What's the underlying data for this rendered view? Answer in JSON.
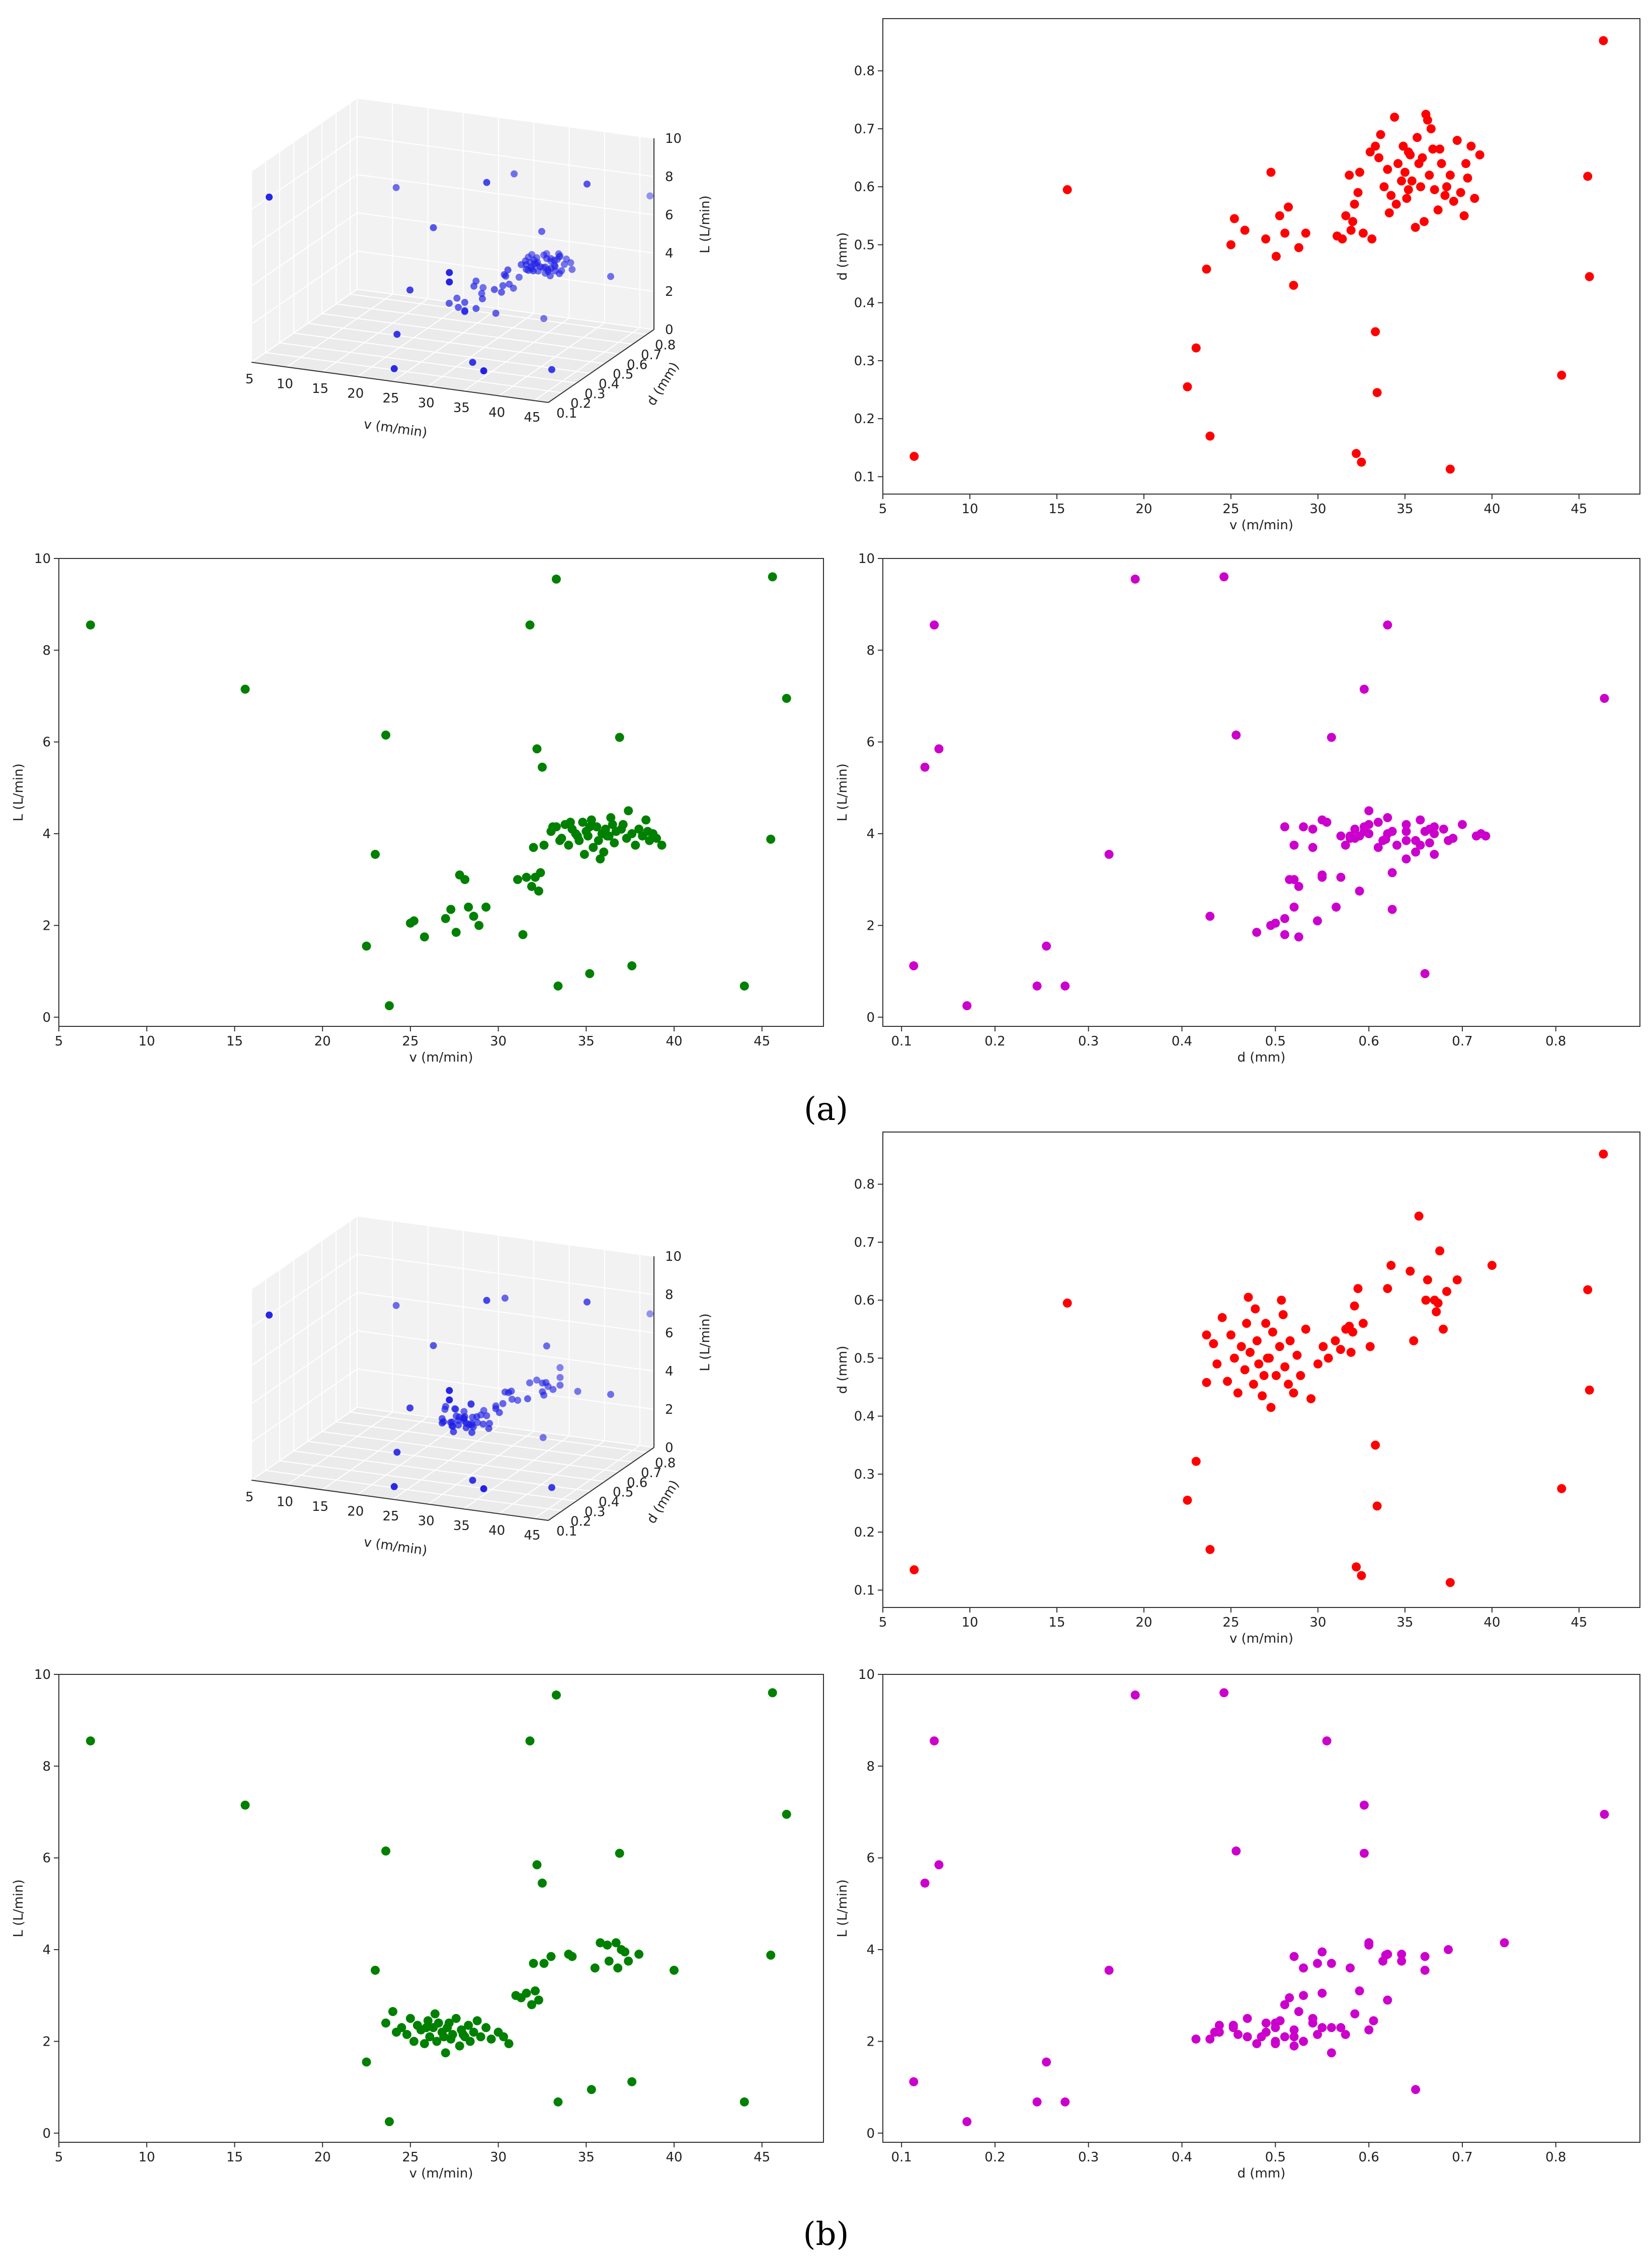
{
  "figure": {
    "parts": [
      {
        "id": "a",
        "label": "(a)"
      },
      {
        "id": "b",
        "label": "(b)"
      }
    ]
  },
  "colors": {
    "v_d_L_3d": "#1f1fe6",
    "v_vs_d": "#ff0000",
    "v_vs_L": "#008000",
    "d_vs_L": "#cc00cc",
    "frame": "#333333"
  },
  "chart_data": [
    {
      "id": "a-3d",
      "part": "a",
      "type": "scatter",
      "projection": "3d",
      "xlabel": "v (m/min)",
      "ylabel": "d (mm)",
      "zlabel": "L (L/min)",
      "xticks": [
        "5",
        "10",
        "15",
        "20",
        "25",
        "30",
        "35",
        "40",
        "45"
      ],
      "yticks": [
        "0.1",
        "0.2",
        "0.3",
        "0.4",
        "0.5",
        "0.6",
        "0.7",
        "0.8"
      ],
      "zticks": [
        "0",
        "2",
        "4",
        "6",
        "8",
        "10"
      ],
      "xlim": [
        5,
        47
      ],
      "ylim": [
        0.1,
        0.85
      ],
      "zlim": [
        0,
        10
      ],
      "points": "part_a"
    },
    {
      "id": "a-vd",
      "part": "a",
      "type": "scatter",
      "xlabel": "v (m/min)",
      "ylabel": "d (mm)",
      "xlim": [
        5,
        48.5
      ],
      "ylim": [
        0.07,
        0.89
      ],
      "xticks": [
        5,
        10,
        15,
        20,
        25,
        30,
        35,
        40,
        45
      ],
      "yticks": [
        0.1,
        0.2,
        0.3,
        0.4,
        0.5,
        0.6,
        0.7,
        0.8
      ],
      "xfield": "v",
      "yfield": "d",
      "points": "part_a"
    },
    {
      "id": "a-vL",
      "part": "a",
      "type": "scatter",
      "xlabel": "v (m/min)",
      "ylabel": "L (L/min)",
      "xlim": [
        5,
        48.5
      ],
      "ylim": [
        -0.2,
        10
      ],
      "xticks": [
        5,
        10,
        15,
        20,
        25,
        30,
        35,
        40,
        45
      ],
      "yticks": [
        0,
        2,
        4,
        6,
        8,
        10
      ],
      "xfield": "v",
      "yfield": "L",
      "points": "part_a"
    },
    {
      "id": "a-dL",
      "part": "a",
      "type": "scatter",
      "xlabel": "d (mm)",
      "ylabel": "L (L/min)",
      "xlim": [
        0.08,
        0.89
      ],
      "ylim": [
        -0.2,
        10
      ],
      "xticks": [
        0.1,
        0.2,
        0.3,
        0.4,
        0.5,
        0.6,
        0.7,
        0.8
      ],
      "yticks": [
        0,
        2,
        4,
        6,
        8,
        10
      ],
      "xfield": "d",
      "yfield": "L",
      "points": "part_a"
    },
    {
      "id": "b-3d",
      "part": "b",
      "type": "scatter",
      "projection": "3d",
      "xlabel": "v (m/min)",
      "ylabel": "d (mm)",
      "zlabel": "L (L/min)",
      "xticks": [
        "5",
        "10",
        "15",
        "20",
        "25",
        "30",
        "35",
        "40",
        "45"
      ],
      "yticks": [
        "0.1",
        "0.2",
        "0.3",
        "0.4",
        "0.5",
        "0.6",
        "0.7",
        "0.8"
      ],
      "zticks": [
        "0",
        "2",
        "4",
        "6",
        "8",
        "10"
      ],
      "xlim": [
        5,
        47
      ],
      "ylim": [
        0.1,
        0.85
      ],
      "zlim": [
        0,
        10
      ],
      "points": "part_b"
    },
    {
      "id": "b-vd",
      "part": "b",
      "type": "scatter",
      "xlabel": "v (m/min)",
      "ylabel": "d (mm)",
      "xlim": [
        5,
        48.5
      ],
      "ylim": [
        0.07,
        0.89
      ],
      "xticks": [
        5,
        10,
        15,
        20,
        25,
        30,
        35,
        40,
        45
      ],
      "yticks": [
        0.1,
        0.2,
        0.3,
        0.4,
        0.5,
        0.6,
        0.7,
        0.8
      ],
      "xfield": "v",
      "yfield": "d",
      "points": "part_b"
    },
    {
      "id": "b-vL",
      "part": "b",
      "type": "scatter",
      "xlabel": "v (m/min)",
      "ylabel": "L (L/min)",
      "xlim": [
        5,
        48.5
      ],
      "ylim": [
        -0.2,
        10
      ],
      "xticks": [
        5,
        10,
        15,
        20,
        25,
        30,
        35,
        40,
        45
      ],
      "yticks": [
        0,
        2,
        4,
        6,
        8,
        10
      ],
      "xfield": "v",
      "yfield": "L",
      "points": "part_b"
    },
    {
      "id": "b-dL",
      "part": "b",
      "type": "scatter",
      "xlabel": "d (mm)",
      "ylabel": "L (L/min)",
      "xlim": [
        0.08,
        0.89
      ],
      "ylim": [
        -0.2,
        10
      ],
      "xticks": [
        0.1,
        0.2,
        0.3,
        0.4,
        0.5,
        0.6,
        0.7,
        0.8
      ],
      "yticks": [
        0,
        2,
        4,
        6,
        8,
        10
      ],
      "xfield": "d",
      "yfield": "L",
      "points": "part_b"
    }
  ],
  "datasets": {
    "outliers": [
      {
        "v": 6.8,
        "d": 0.135,
        "L": 8.55
      },
      {
        "v": 15.6,
        "d": 0.595,
        "L": 7.15
      },
      {
        "v": 22.5,
        "d": 0.255,
        "L": 1.55
      },
      {
        "v": 23.0,
        "d": 0.322,
        "L": 3.55
      },
      {
        "v": 23.6,
        "d": 0.458,
        "L": 6.15
      },
      {
        "v": 23.8,
        "d": 0.17,
        "L": 0.25
      },
      {
        "v": 32.2,
        "d": 0.14,
        "L": 5.85
      },
      {
        "v": 32.5,
        "d": 0.125,
        "L": 5.45
      },
      {
        "v": 33.3,
        "d": 0.35,
        "L": 9.55
      },
      {
        "v": 33.4,
        "d": 0.245,
        "L": 0.68
      },
      {
        "v": 37.6,
        "d": 0.113,
        "L": 1.12
      },
      {
        "v": 44.0,
        "d": 0.275,
        "L": 0.68
      },
      {
        "v": 45.6,
        "d": 0.445,
        "L": 9.6
      },
      {
        "v": 45.5,
        "d": 0.618,
        "L": 3.88
      },
      {
        "v": 46.4,
        "d": 0.852,
        "L": 6.95
      }
    ],
    "part_a_cluster": [
      {
        "v": 25.2,
        "d": 0.545,
        "L": 2.1
      },
      {
        "v": 25.0,
        "d": 0.5,
        "L": 2.05
      },
      {
        "v": 25.8,
        "d": 0.525,
        "L": 1.75
      },
      {
        "v": 27.0,
        "d": 0.51,
        "L": 2.15
      },
      {
        "v": 27.3,
        "d": 0.625,
        "L": 2.35
      },
      {
        "v": 27.6,
        "d": 0.48,
        "L": 1.85
      },
      {
        "v": 27.8,
        "d": 0.55,
        "L": 3.1
      },
      {
        "v": 28.1,
        "d": 0.52,
        "L": 3.0
      },
      {
        "v": 28.3,
        "d": 0.565,
        "L": 2.4
      },
      {
        "v": 28.6,
        "d": 0.43,
        "L": 2.2
      },
      {
        "v": 28.9,
        "d": 0.495,
        "L": 2.0
      },
      {
        "v": 29.3,
        "d": 0.52,
        "L": 2.4
      },
      {
        "v": 31.1,
        "d": 0.515,
        "L": 3.0
      },
      {
        "v": 31.4,
        "d": 0.51,
        "L": 1.8
      },
      {
        "v": 31.6,
        "d": 0.55,
        "L": 3.05
      },
      {
        "v": 31.9,
        "d": 0.525,
        "L": 2.85
      },
      {
        "v": 32.1,
        "d": 0.57,
        "L": 3.05
      },
      {
        "v": 32.3,
        "d": 0.59,
        "L": 2.75
      },
      {
        "v": 32.4,
        "d": 0.625,
        "L": 3.15
      },
      {
        "v": 32.0,
        "d": 0.54,
        "L": 3.7
      },
      {
        "v": 32.6,
        "d": 0.52,
        "L": 3.75
      },
      {
        "v": 33.0,
        "d": 0.66,
        "L": 4.05
      },
      {
        "v": 33.3,
        "d": 0.67,
        "L": 4.15
      },
      {
        "v": 33.6,
        "d": 0.69,
        "L": 3.9
      },
      {
        "v": 33.8,
        "d": 0.6,
        "L": 4.2
      },
      {
        "v": 34.0,
        "d": 0.63,
        "L": 3.75
      },
      {
        "v": 34.2,
        "d": 0.585,
        "L": 4.1
      },
      {
        "v": 34.4,
        "d": 0.72,
        "L": 4.0
      },
      {
        "v": 34.6,
        "d": 0.64,
        "L": 3.85
      },
      {
        "v": 34.8,
        "d": 0.61,
        "L": 4.25
      },
      {
        "v": 35.0,
        "d": 0.625,
        "L": 4.05
      },
      {
        "v": 35.1,
        "d": 0.58,
        "L": 3.95
      },
      {
        "v": 35.3,
        "d": 0.655,
        "L": 4.3
      },
      {
        "v": 35.4,
        "d": 0.61,
        "L": 3.7
      },
      {
        "v": 35.6,
        "d": 0.53,
        "L": 4.15
      },
      {
        "v": 35.7,
        "d": 0.685,
        "L": 3.85
      },
      {
        "v": 35.9,
        "d": 0.6,
        "L": 4.0
      },
      {
        "v": 36.0,
        "d": 0.65,
        "L": 3.6
      },
      {
        "v": 36.1,
        "d": 0.54,
        "L": 4.1
      },
      {
        "v": 36.3,
        "d": 0.715,
        "L": 3.95
      },
      {
        "v": 36.4,
        "d": 0.62,
        "L": 4.35
      },
      {
        "v": 36.6,
        "d": 0.665,
        "L": 3.8
      },
      {
        "v": 36.7,
        "d": 0.595,
        "L": 4.05
      },
      {
        "v": 36.9,
        "d": 0.56,
        "L": 6.1
      },
      {
        "v": 37.1,
        "d": 0.64,
        "L": 4.2
      },
      {
        "v": 37.3,
        "d": 0.585,
        "L": 3.9
      },
      {
        "v": 37.4,
        "d": 0.6,
        "L": 4.5
      },
      {
        "v": 37.6,
        "d": 0.62,
        "L": 4.0
      },
      {
        "v": 37.8,
        "d": 0.575,
        "L": 3.75
      },
      {
        "v": 38.0,
        "d": 0.68,
        "L": 4.1
      },
      {
        "v": 38.2,
        "d": 0.59,
        "L": 3.95
      },
      {
        "v": 38.4,
        "d": 0.55,
        "L": 4.3
      },
      {
        "v": 38.6,
        "d": 0.615,
        "L": 3.85
      },
      {
        "v": 38.8,
        "d": 0.67,
        "L": 4.0
      },
      {
        "v": 39.0,
        "d": 0.58,
        "L": 3.9
      },
      {
        "v": 39.3,
        "d": 0.655,
        "L": 3.75
      },
      {
        "v": 33.1,
        "d": 0.51,
        "L": 4.15
      },
      {
        "v": 34.9,
        "d": 0.67,
        "L": 3.55
      },
      {
        "v": 35.8,
        "d": 0.64,
        "L": 3.45
      },
      {
        "v": 36.5,
        "d": 0.7,
        "L": 4.2
      },
      {
        "v": 34.1,
        "d": 0.555,
        "L": 4.25
      },
      {
        "v": 37.0,
        "d": 0.665,
        "L": 4.1
      },
      {
        "v": 35.2,
        "d": 0.595,
        "L": 4.15
      },
      {
        "v": 31.8,
        "d": 0.62,
        "L": 8.55
      },
      {
        "v": 35.2,
        "d": 0.66,
        "L": 0.95
      },
      {
        "v": 36.2,
        "d": 0.725,
        "L": 3.95
      },
      {
        "v": 38.5,
        "d": 0.64,
        "L": 4.05
      },
      {
        "v": 34.5,
        "d": 0.57,
        "L": 3.95
      },
      {
        "v": 33.5,
        "d": 0.65,
        "L": 3.85
      }
    ],
    "part_b_cluster": [
      {
        "v": 23.6,
        "d": 0.54,
        "L": 2.4
      },
      {
        "v": 24.0,
        "d": 0.525,
        "L": 2.65
      },
      {
        "v": 24.2,
        "d": 0.49,
        "L": 2.2
      },
      {
        "v": 24.5,
        "d": 0.57,
        "L": 2.3
      },
      {
        "v": 24.8,
        "d": 0.46,
        "L": 2.15
      },
      {
        "v": 25.0,
        "d": 0.54,
        "L": 2.5
      },
      {
        "v": 25.2,
        "d": 0.5,
        "L": 2.0
      },
      {
        "v": 25.4,
        "d": 0.44,
        "L": 2.35
      },
      {
        "v": 25.6,
        "d": 0.52,
        "L": 2.25
      },
      {
        "v": 25.8,
        "d": 0.48,
        "L": 1.95
      },
      {
        "v": 26.0,
        "d": 0.605,
        "L": 2.45
      },
      {
        "v": 26.1,
        "d": 0.51,
        "L": 2.1
      },
      {
        "v": 26.3,
        "d": 0.455,
        "L": 2.3
      },
      {
        "v": 26.5,
        "d": 0.53,
        "L": 2.0
      },
      {
        "v": 26.6,
        "d": 0.49,
        "L": 2.4
      },
      {
        "v": 26.8,
        "d": 0.435,
        "L": 2.2
      },
      {
        "v": 27.0,
        "d": 0.56,
        "L": 1.75
      },
      {
        "v": 27.1,
        "d": 0.5,
        "L": 2.3
      },
      {
        "v": 27.3,
        "d": 0.415,
        "L": 2.05
      },
      {
        "v": 27.4,
        "d": 0.545,
        "L": 2.15
      },
      {
        "v": 27.6,
        "d": 0.47,
        "L": 2.5
      },
      {
        "v": 27.8,
        "d": 0.52,
        "L": 1.9
      },
      {
        "v": 27.9,
        "d": 0.6,
        "L": 2.25
      },
      {
        "v": 28.1,
        "d": 0.485,
        "L": 2.1
      },
      {
        "v": 28.3,
        "d": 0.455,
        "L": 2.35
      },
      {
        "v": 28.4,
        "d": 0.53,
        "L": 2.0
      },
      {
        "v": 28.6,
        "d": 0.44,
        "L": 2.2
      },
      {
        "v": 28.8,
        "d": 0.505,
        "L": 2.45
      },
      {
        "v": 29.0,
        "d": 0.47,
        "L": 2.1
      },
      {
        "v": 29.3,
        "d": 0.55,
        "L": 2.3
      },
      {
        "v": 29.6,
        "d": 0.43,
        "L": 2.05
      },
      {
        "v": 30.0,
        "d": 0.49,
        "L": 2.2
      },
      {
        "v": 30.3,
        "d": 0.52,
        "L": 2.1
      },
      {
        "v": 30.6,
        "d": 0.5,
        "L": 1.95
      },
      {
        "v": 31.0,
        "d": 0.53,
        "L": 3.0
      },
      {
        "v": 31.3,
        "d": 0.515,
        "L": 2.95
      },
      {
        "v": 31.6,
        "d": 0.55,
        "L": 3.05
      },
      {
        "v": 31.9,
        "d": 0.51,
        "L": 2.8
      },
      {
        "v": 32.1,
        "d": 0.59,
        "L": 3.1
      },
      {
        "v": 32.3,
        "d": 0.62,
        "L": 2.9
      },
      {
        "v": 32.6,
        "d": 0.56,
        "L": 3.7
      },
      {
        "v": 32.0,
        "d": 0.545,
        "L": 3.7
      },
      {
        "v": 33.0,
        "d": 0.52,
        "L": 3.85
      },
      {
        "v": 34.2,
        "d": 0.66,
        "L": 3.85
      },
      {
        "v": 34.0,
        "d": 0.62,
        "L": 3.9
      },
      {
        "v": 35.5,
        "d": 0.53,
        "L": 3.6
      },
      {
        "v": 35.8,
        "d": 0.745,
        "L": 4.15
      },
      {
        "v": 36.3,
        "d": 0.635,
        "L": 3.75
      },
      {
        "v": 36.7,
        "d": 0.6,
        "L": 4.15
      },
      {
        "v": 37.0,
        "d": 0.685,
        "L": 4.0
      },
      {
        "v": 37.4,
        "d": 0.615,
        "L": 3.75
      },
      {
        "v": 38.0,
        "d": 0.635,
        "L": 3.9
      },
      {
        "v": 40.0,
        "d": 0.66,
        "L": 3.55
      },
      {
        "v": 36.2,
        "d": 0.6,
        "L": 4.1
      },
      {
        "v": 37.2,
        "d": 0.55,
        "L": 3.95
      },
      {
        "v": 36.8,
        "d": 0.58,
        "L": 3.6
      },
      {
        "v": 35.3,
        "d": 0.65,
        "L": 0.95
      },
      {
        "v": 31.8,
        "d": 0.555,
        "L": 8.55
      },
      {
        "v": 36.9,
        "d": 0.595,
        "L": 6.1
      },
      {
        "v": 26.4,
        "d": 0.585,
        "L": 2.6
      },
      {
        "v": 28.0,
        "d": 0.575,
        "L": 2.15
      },
      {
        "v": 27.2,
        "d": 0.5,
        "L": 2.4
      },
      {
        "v": 26.9,
        "d": 0.47,
        "L": 2.1
      },
      {
        "v": 25.9,
        "d": 0.56,
        "L": 2.3
      }
    ]
  }
}
